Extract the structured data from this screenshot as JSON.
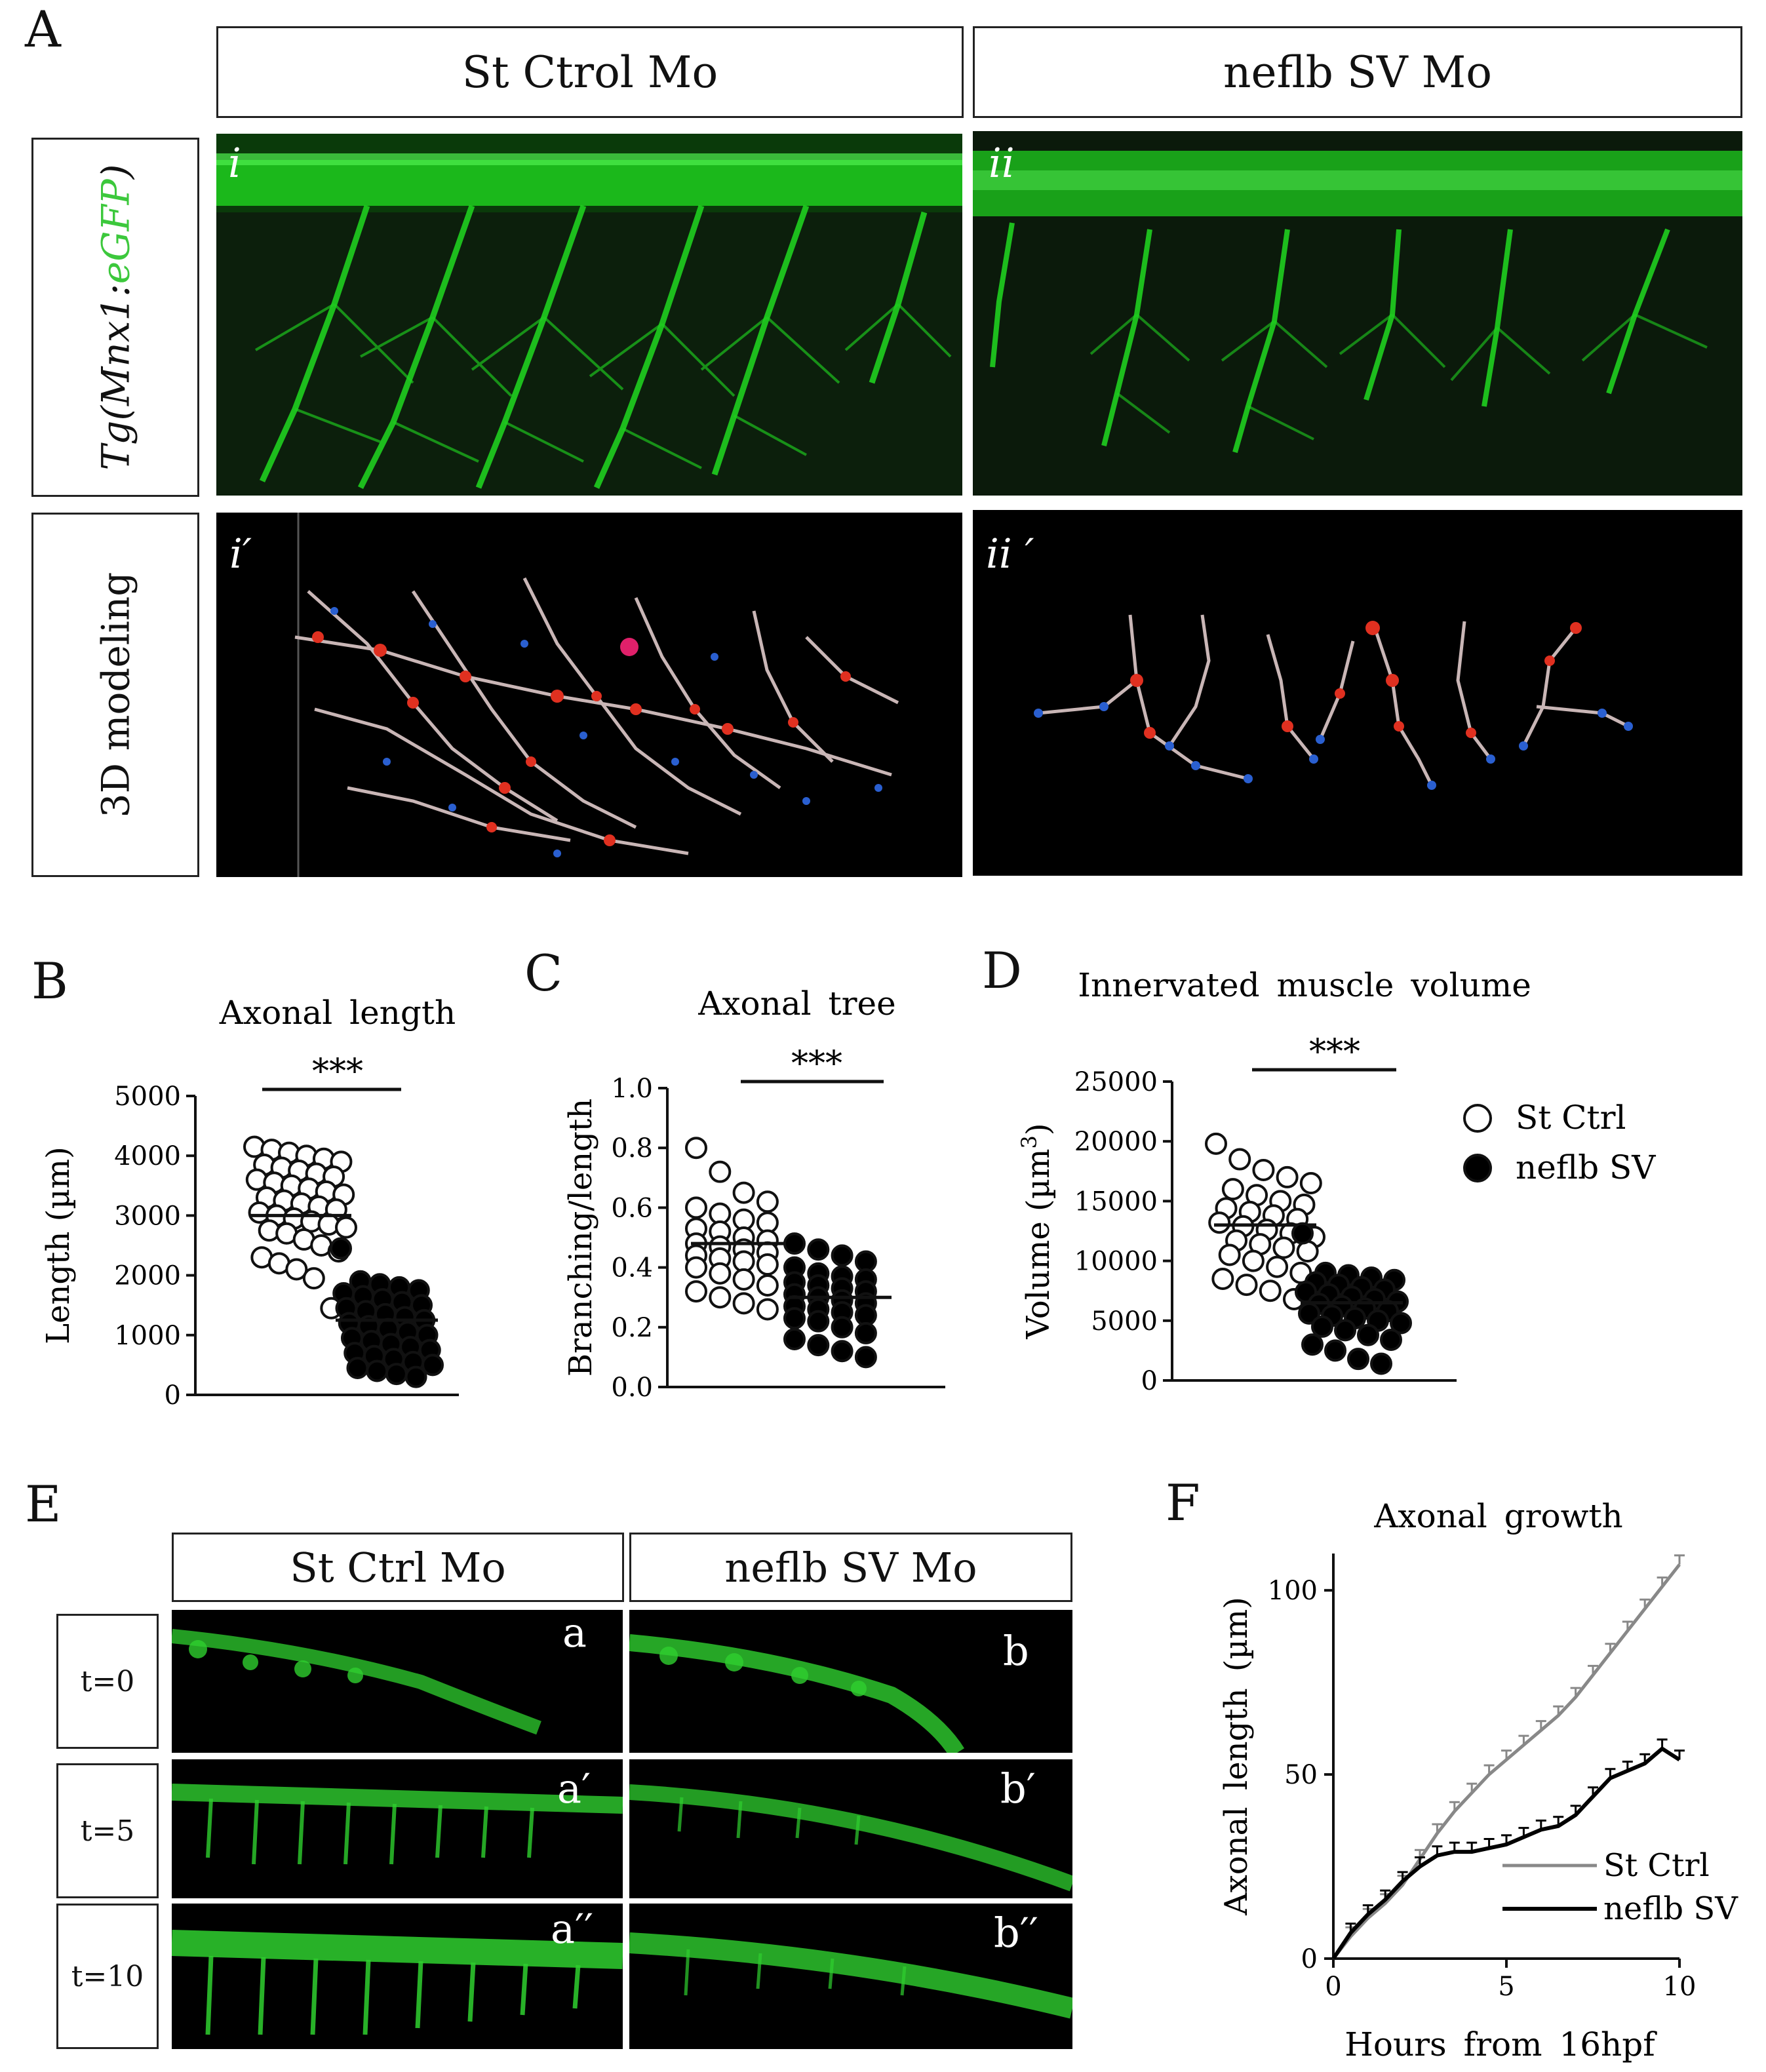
{
  "panelA": {
    "letter": "A",
    "col_headers": [
      "St Ctrol Mo",
      "neflb SV Mo"
    ],
    "row_labels": {
      "tg_prefix": "Tg(",
      "tg_gene": "Mnx1:",
      "tg_reporter": "eGFP",
      "tg_suffix": ")",
      "modeling": "3D modeling"
    },
    "image_labels": [
      "i",
      "ii",
      "i′",
      "ii ′"
    ]
  },
  "panelB": {
    "letter": "B"
  },
  "panelC": {
    "letter": "C"
  },
  "panelD": {
    "letter": "D"
  },
  "panelE": {
    "letter": "E",
    "col_headers": [
      "St Ctrl Mo",
      "neflb SV Mo"
    ],
    "row_labels": [
      "t=0",
      "t=5",
      "t=10"
    ],
    "image_labels": [
      "a",
      "b",
      "a′",
      "b′",
      "a′′",
      "b′′"
    ]
  },
  "panelF": {
    "letter": "F"
  },
  "colors": {
    "gfp": "#1fcf1f",
    "control_marker": "#ffffff",
    "mutant_marker": "#000000",
    "ctrl_line": "#888888",
    "sv_line": "#000000"
  },
  "chart_data": [
    {
      "id": "B",
      "type": "scatter",
      "title": "Axonal length",
      "ylabel": "Length (µm)",
      "ylim": [
        0,
        5000
      ],
      "yticks": [
        0,
        1000,
        2000,
        3000,
        4000,
        5000
      ],
      "significance": "***",
      "series": [
        {
          "name": "St Ctrl",
          "marker": "open-circle",
          "mean": 3000,
          "values": [
            4150,
            4100,
            4050,
            4000,
            3950,
            3900,
            3850,
            3800,
            3750,
            3700,
            3650,
            3600,
            3550,
            3500,
            3450,
            3400,
            3350,
            3300,
            3250,
            3200,
            3150,
            3100,
            3050,
            3000,
            2950,
            2900,
            2850,
            2800,
            2750,
            2700,
            2600,
            2500,
            2400,
            2300,
            2200,
            2100,
            1950,
            1450
          ]
        },
        {
          "name": "neflb SV",
          "marker": "filled-circle",
          "mean": 1250,
          "values": [
            2450,
            1900,
            1850,
            1800,
            1750,
            1700,
            1650,
            1600,
            1550,
            1500,
            1450,
            1400,
            1350,
            1300,
            1250,
            1200,
            1150,
            1100,
            1050,
            1000,
            950,
            900,
            850,
            800,
            750,
            700,
            650,
            600,
            550,
            500,
            450,
            400,
            350,
            300
          ]
        }
      ]
    },
    {
      "id": "C",
      "type": "scatter",
      "title": "Axonal tree",
      "ylabel": "Branching/length",
      "ylim": [
        0.0,
        1.0
      ],
      "yticks": [
        0.0,
        0.2,
        0.4,
        0.6,
        0.8,
        1.0
      ],
      "ytick_labels": [
        "0.0",
        "0.2",
        "0.4",
        "0.6",
        "0.8",
        "1.0"
      ],
      "significance": "***",
      "series": [
        {
          "name": "St Ctrl",
          "marker": "open-circle",
          "mean": 0.48,
          "values": [
            0.8,
            0.72,
            0.65,
            0.62,
            0.6,
            0.58,
            0.56,
            0.55,
            0.53,
            0.52,
            0.5,
            0.49,
            0.48,
            0.47,
            0.46,
            0.45,
            0.44,
            0.43,
            0.42,
            0.41,
            0.4,
            0.38,
            0.36,
            0.34,
            0.32,
            0.3,
            0.28,
            0.26
          ]
        },
        {
          "name": "neflb SV",
          "marker": "filled-circle",
          "mean": 0.3,
          "values": [
            0.48,
            0.46,
            0.44,
            0.42,
            0.4,
            0.38,
            0.37,
            0.36,
            0.35,
            0.34,
            0.33,
            0.32,
            0.31,
            0.3,
            0.29,
            0.28,
            0.27,
            0.26,
            0.25,
            0.24,
            0.23,
            0.22,
            0.2,
            0.18,
            0.16,
            0.14,
            0.12,
            0.1
          ]
        }
      ]
    },
    {
      "id": "D",
      "type": "scatter",
      "title": "Innervated muscle volume",
      "ylabel_prefix": "Volume (µm",
      "ylabel_sup": "3",
      "ylabel_suffix": ")",
      "ylim": [
        0,
        25000
      ],
      "yticks": [
        0,
        5000,
        10000,
        15000,
        20000,
        25000
      ],
      "significance": "***",
      "legend": {
        "placement": "right",
        "entries": [
          "St Ctrl",
          "neflb SV"
        ]
      },
      "series": [
        {
          "name": "St Ctrl",
          "marker": "open-circle",
          "mean": 13000,
          "values": [
            19800,
            18500,
            17600,
            17000,
            16500,
            16000,
            15500,
            15000,
            14700,
            14400,
            14100,
            13800,
            13500,
            13200,
            12900,
            12600,
            12300,
            12000,
            11700,
            11400,
            11100,
            10800,
            10500,
            10000,
            9500,
            9000,
            8500,
            8000,
            7500,
            6800
          ]
        },
        {
          "name": "neflb SV",
          "marker": "filled-circle",
          "mean": 6500,
          "values": [
            12300,
            9000,
            8800,
            8600,
            8400,
            8200,
            8000,
            7800,
            7600,
            7400,
            7200,
            7000,
            6800,
            6600,
            6400,
            6200,
            6000,
            5800,
            5600,
            5400,
            5200,
            5000,
            4800,
            4500,
            4200,
            3800,
            3400,
            3000,
            2500,
            1800,
            1400
          ]
        }
      ]
    },
    {
      "id": "F",
      "type": "line",
      "title": "Axonal growth",
      "xlabel": "Hours from 16hpf",
      "ylabel": "Axonal length (µm)",
      "xlim": [
        0,
        10
      ],
      "ylim": [
        0,
        110
      ],
      "xticks": [
        0,
        5,
        10
      ],
      "yticks": [
        0,
        50,
        100
      ],
      "legend": {
        "placement": "bottom-right"
      },
      "series": [
        {
          "name": "St Ctrl",
          "error_bars": true,
          "x": [
            0,
            0.5,
            1,
            1.5,
            2,
            2.5,
            3,
            3.5,
            4,
            4.5,
            5,
            5.5,
            6,
            6.5,
            7,
            7.5,
            8,
            8.5,
            9,
            9.5,
            10
          ],
          "y": [
            0,
            6,
            11,
            15,
            20,
            27,
            34,
            40,
            45,
            50,
            54,
            58,
            62,
            66,
            71,
            77,
            83,
            89,
            95,
            101,
            107
          ]
        },
        {
          "name": "neflb SV",
          "error_bars": true,
          "x": [
            0,
            0.5,
            1,
            1.5,
            2,
            2.5,
            3,
            3.5,
            4,
            4.5,
            5,
            5.5,
            6,
            6.5,
            7,
            7.5,
            8,
            8.5,
            9,
            9.5,
            10
          ],
          "y": [
            0,
            7,
            12,
            16,
            21,
            25,
            28,
            29,
            29,
            30,
            31,
            33,
            35,
            36,
            39,
            44,
            49,
            51,
            53,
            57,
            54
          ]
        }
      ]
    }
  ]
}
